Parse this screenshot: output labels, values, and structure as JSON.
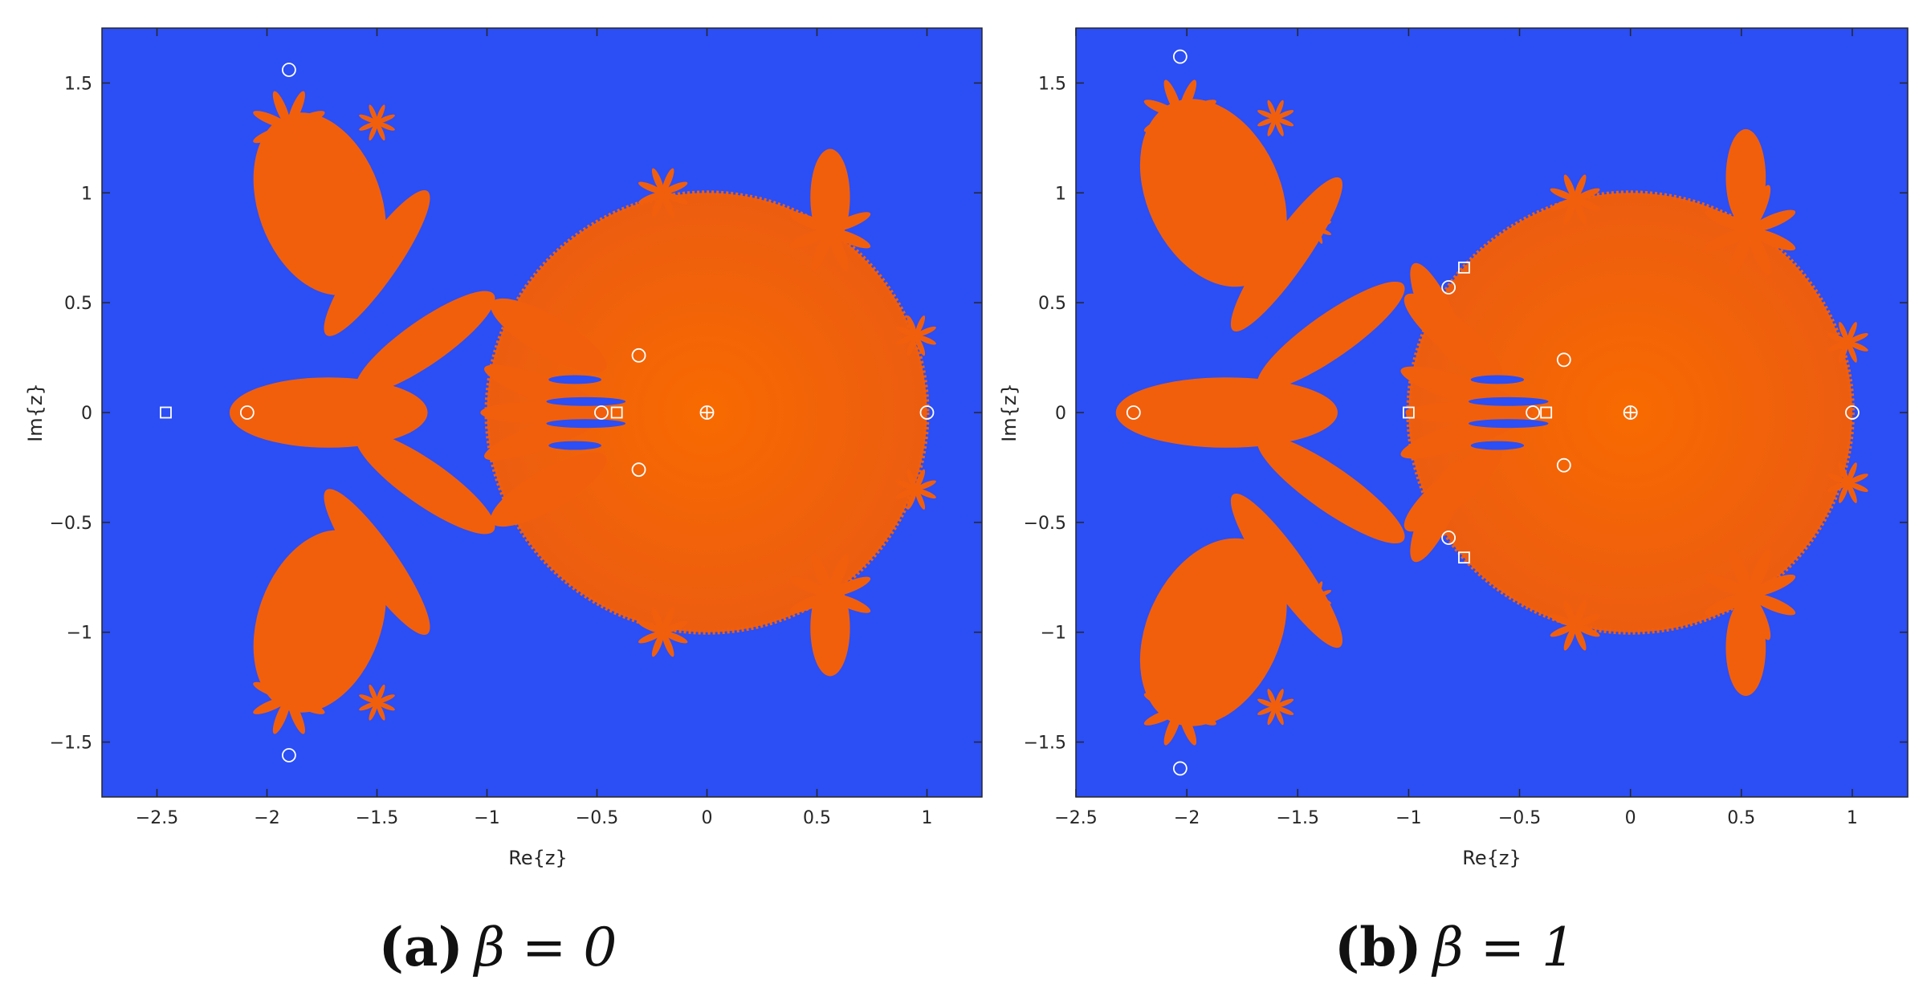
{
  "figure": {
    "colors": {
      "background_basin": "#2b4ef5",
      "fractal_basin": "#f25f0c",
      "marker": "#ffffff",
      "axis": "#262626"
    }
  },
  "chart_data": [
    {
      "type": "heatmap",
      "title": "",
      "caption_tag": "(a)",
      "caption_eq": "β = 0",
      "xlabel": "Re{z}",
      "ylabel": "Im{z}",
      "xlim": [
        -2.75,
        1.25
      ],
      "ylim": [
        -1.75,
        1.75
      ],
      "xticks": [
        -2.5,
        -2,
        -1.5,
        -1,
        -0.5,
        0,
        0.5,
        1
      ],
      "xtick_labels": [
        "−2.5",
        "−2",
        "−1.5",
        "−1",
        "−0.5",
        "0",
        "0.5",
        "1"
      ],
      "yticks": [
        -1.5,
        -1,
        -0.5,
        0,
        0.5,
        1,
        1.5
      ],
      "ytick_labels": [
        "−1.5",
        "−1",
        "−0.5",
        "0",
        "0.5",
        "1",
        "1.5"
      ],
      "grid": false,
      "circle_markers": [
        [
          -1.9,
          1.56
        ],
        [
          -1.9,
          -1.56
        ],
        [
          -2.09,
          0
        ],
        [
          -0.48,
          0
        ],
        [
          -0.31,
          0.26
        ],
        [
          -0.31,
          -0.26
        ],
        [
          0,
          0
        ],
        [
          1,
          0
        ]
      ],
      "square_markers": [
        [
          -2.46,
          0
        ],
        [
          -0.41,
          0
        ]
      ],
      "plus_markers": [
        [
          0,
          0
        ]
      ],
      "cardioid": {
        "center": [
          0,
          0
        ],
        "radius": 1
      },
      "petal_blobs": [
        {
          "center": [
            -1.76,
            0.95
          ],
          "rx": 0.28,
          "ry": 0.43,
          "angle": -20
        },
        {
          "center": [
            -1.76,
            -0.95
          ],
          "rx": 0.28,
          "ry": 0.43,
          "angle": 20
        },
        {
          "center": [
            -1.72,
            0.0
          ],
          "rx": 0.45,
          "ry": 0.16,
          "angle": 0
        },
        {
          "center": [
            -1.28,
            0.32
          ],
          "rx": 0.38,
          "ry": 0.1,
          "angle": -35
        },
        {
          "center": [
            -1.28,
            -0.32
          ],
          "rx": 0.38,
          "ry": 0.1,
          "angle": 35
        },
        {
          "center": [
            -0.73,
            0.1
          ],
          "rx": 0.3,
          "ry": 0.06,
          "angle": 20
        },
        {
          "center": [
            -0.73,
            -0.1
          ],
          "rx": 0.3,
          "ry": 0.06,
          "angle": -20
        },
        {
          "center": [
            -0.75,
            0.0
          ],
          "rx": 0.28,
          "ry": 0.05,
          "angle": 0
        },
        {
          "center": [
            -0.72,
            0.35
          ],
          "rx": 0.3,
          "ry": 0.09,
          "angle": 30
        },
        {
          "center": [
            -0.72,
            -0.35
          ],
          "rx": 0.3,
          "ry": 0.09,
          "angle": -30
        },
        {
          "center": [
            -1.5,
            0.68
          ],
          "rx": 0.4,
          "ry": 0.09,
          "angle": -55
        },
        {
          "center": [
            -1.5,
            -0.68
          ],
          "rx": 0.4,
          "ry": 0.09,
          "angle": 55
        },
        {
          "center": [
            0.56,
            0.98
          ],
          "rx": 0.09,
          "ry": 0.22,
          "angle": 0
        },
        {
          "center": [
            0.56,
            -0.98
          ],
          "rx": 0.09,
          "ry": 0.22,
          "angle": 0
        }
      ],
      "flowers": [
        {
          "center": [
            -1.9,
            1.3
          ],
          "size": 0.16
        },
        {
          "center": [
            -1.9,
            -1.3
          ],
          "size": 0.16
        },
        {
          "center": [
            0.56,
            0.83
          ],
          "size": 0.18
        },
        {
          "center": [
            0.56,
            -0.83
          ],
          "size": 0.18
        },
        {
          "center": [
            -0.2,
            1.0
          ],
          "size": 0.11
        },
        {
          "center": [
            -0.2,
            -1.0
          ],
          "size": 0.11
        },
        {
          "center": [
            0.95,
            0.35
          ],
          "size": 0.09
        },
        {
          "center": [
            0.95,
            -0.35
          ],
          "size": 0.09
        },
        {
          "center": [
            -1.5,
            1.32
          ],
          "size": 0.08
        },
        {
          "center": [
            -1.5,
            -1.32
          ],
          "size": 0.08
        },
        {
          "center": [
            -2.02,
            0.05
          ],
          "size": 0.06
        }
      ]
    },
    {
      "type": "heatmap",
      "title": "",
      "caption_tag": "(b)",
      "caption_eq": "β = 1",
      "xlabel": "Re{z}",
      "ylabel": "Im{z}",
      "xlim": [
        -2.5,
        1.25
      ],
      "ylim": [
        -1.75,
        1.75
      ],
      "xticks": [
        -2.5,
        -2,
        -1.5,
        -1,
        -0.5,
        0,
        0.5,
        1
      ],
      "xtick_labels": [
        "−2.5",
        "−2",
        "−1.5",
        "−1",
        "−0.5",
        "0",
        "0.5",
        "1"
      ],
      "yticks": [
        -1.5,
        -1,
        -0.5,
        0,
        0.5,
        1,
        1.5
      ],
      "ytick_labels": [
        "−1.5",
        "−1",
        "−0.5",
        "0",
        "0.5",
        "1",
        "1.5"
      ],
      "grid": false,
      "circle_markers": [
        [
          -2.03,
          1.62
        ],
        [
          -2.03,
          -1.62
        ],
        [
          -2.24,
          0
        ],
        [
          -0.82,
          0.57
        ],
        [
          -0.82,
          -0.57
        ],
        [
          -0.44,
          0
        ],
        [
          -0.3,
          0.24
        ],
        [
          -0.3,
          -0.24
        ],
        [
          0,
          0
        ],
        [
          1,
          0
        ]
      ],
      "square_markers": [
        [
          -1.0,
          0
        ],
        [
          -0.75,
          0.66
        ],
        [
          -0.75,
          -0.66
        ],
        [
          -0.38,
          0
        ]
      ],
      "plus_markers": [
        [
          0,
          0
        ]
      ],
      "cardioid": {
        "center": [
          0,
          0
        ],
        "radius": 1
      },
      "petal_blobs": [
        {
          "center": [
            -1.88,
            1.0
          ],
          "rx": 0.3,
          "ry": 0.45,
          "angle": -25
        },
        {
          "center": [
            -1.88,
            -1.0
          ],
          "rx": 0.3,
          "ry": 0.45,
          "angle": 25
        },
        {
          "center": [
            -1.82,
            0.0
          ],
          "rx": 0.5,
          "ry": 0.16,
          "angle": 0
        },
        {
          "center": [
            -1.35,
            0.35
          ],
          "rx": 0.4,
          "ry": 0.1,
          "angle": -35
        },
        {
          "center": [
            -1.35,
            -0.35
          ],
          "rx": 0.4,
          "ry": 0.1,
          "angle": 35
        },
        {
          "center": [
            -0.75,
            0.1
          ],
          "rx": 0.3,
          "ry": 0.06,
          "angle": 18
        },
        {
          "center": [
            -0.75,
            -0.1
          ],
          "rx": 0.3,
          "ry": 0.06,
          "angle": -18
        },
        {
          "center": [
            -0.72,
            0.0
          ],
          "rx": 0.28,
          "ry": 0.05,
          "angle": 0
        },
        {
          "center": [
            -0.8,
            0.35
          ],
          "rx": 0.28,
          "ry": 0.08,
          "angle": 40
        },
        {
          "center": [
            -0.8,
            -0.35
          ],
          "rx": 0.28,
          "ry": 0.08,
          "angle": -40
        },
        {
          "center": [
            -0.87,
            0.45
          ],
          "rx": 0.25,
          "ry": 0.07,
          "angle": 65
        },
        {
          "center": [
            -0.87,
            -0.45
          ],
          "rx": 0.25,
          "ry": 0.07,
          "angle": -65
        },
        {
          "center": [
            -1.55,
            0.72
          ],
          "rx": 0.42,
          "ry": 0.09,
          "angle": -55
        },
        {
          "center": [
            -1.55,
            -0.72
          ],
          "rx": 0.42,
          "ry": 0.09,
          "angle": 55
        },
        {
          "center": [
            0.52,
            1.07
          ],
          "rx": 0.09,
          "ry": 0.22,
          "angle": 0
        },
        {
          "center": [
            0.52,
            -1.07
          ],
          "rx": 0.09,
          "ry": 0.22,
          "angle": 0
        }
      ],
      "flowers": [
        {
          "center": [
            -2.03,
            1.35
          ],
          "size": 0.16
        },
        {
          "center": [
            -2.03,
            -1.35
          ],
          "size": 0.16
        },
        {
          "center": [
            0.54,
            0.83
          ],
          "size": 0.2
        },
        {
          "center": [
            0.54,
            -0.83
          ],
          "size": 0.2
        },
        {
          "center": [
            -0.25,
            0.97
          ],
          "size": 0.11
        },
        {
          "center": [
            -0.25,
            -0.97
          ],
          "size": 0.11
        },
        {
          "center": [
            0.98,
            0.32
          ],
          "size": 0.09
        },
        {
          "center": [
            0.98,
            -0.32
          ],
          "size": 0.09
        },
        {
          "center": [
            -1.6,
            1.34
          ],
          "size": 0.08
        },
        {
          "center": [
            -1.6,
            -1.34
          ],
          "size": 0.08
        },
        {
          "center": [
            -1.42,
            0.84
          ],
          "size": 0.07
        },
        {
          "center": [
            -1.42,
            -0.84
          ],
          "size": 0.07
        }
      ]
    }
  ]
}
